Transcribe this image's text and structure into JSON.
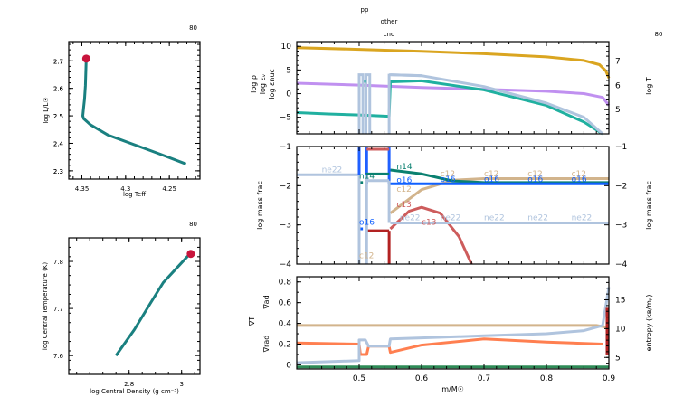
{
  "header": {
    "model_number_left_top": "80",
    "model_number_left_bottom": "80",
    "model_number_right": "80",
    "burn_labels": [
      "pp",
      "other",
      "cno"
    ]
  },
  "colors": {
    "teal": "#1a8080",
    "marker": "#c8143c",
    "logT": "#daa520",
    "logRho": "#c090f0",
    "logEps": "#20b0a0",
    "logEpsNuc": "#b0c4de",
    "h1": "#2060ff",
    "n14": "#0a8070",
    "c12": "#d2b48c",
    "c13": "#cd5c5c",
    "ne22": "#b0c4de",
    "o16": "#1060ff",
    "red": "#b22222",
    "sigma_ad": "#d2b48c",
    "sigma_rad": "#ff7f50",
    "entropy": "#b0c4de",
    "green": "#2e8b57"
  },
  "chart_data": [
    {
      "type": "line",
      "name": "HR diagram",
      "title": "",
      "xlabel": "log Teff",
      "ylabel": "log L/L☉",
      "xlim": [
        4.365,
        4.215
      ],
      "ylim": [
        2.27,
        2.77
      ],
      "xticks": [
        4.35,
        4.3,
        4.25
      ],
      "xtick_labels": [
        "4.35",
        "4.3",
        "4.25"
      ],
      "yticks": [
        2.3,
        2.4,
        2.5,
        2.6,
        2.7
      ],
      "ytick_labels": [
        "2.3",
        "2.4",
        "2.5",
        "2.6",
        "2.7"
      ],
      "series": [
        {
          "name": "track",
          "x": [
            4.231,
            4.26,
            4.29,
            4.32,
            4.34,
            4.348,
            4.349,
            4.348,
            4.347,
            4.346,
            4.345
          ],
          "y": [
            2.325,
            2.36,
            2.395,
            2.43,
            2.467,
            2.49,
            2.5,
            2.53,
            2.56,
            2.61,
            2.705
          ]
        }
      ],
      "marker": {
        "x": 4.345,
        "y": 2.708
      }
    },
    {
      "type": "line",
      "name": "central conditions",
      "xlabel": "log Central Density (g cm⁻³)",
      "ylabel": "log Central Temperature (K)",
      "xlim": [
        2.57,
        3.07
      ],
      "ylim": [
        7.56,
        7.85
      ],
      "xticks": [
        2.8,
        3.0
      ],
      "xtick_labels": [
        "2.8",
        "3"
      ],
      "yticks": [
        7.6,
        7.7,
        7.8
      ],
      "ytick_labels": [
        "7.6",
        "7.7",
        "7.8"
      ],
      "series": [
        {
          "name": "track",
          "x": [
            2.75,
            2.82,
            2.88,
            2.93,
            2.98,
            3.03
          ],
          "y": [
            7.6,
            7.655,
            7.71,
            7.755,
            7.785,
            7.815
          ]
        }
      ],
      "marker": {
        "x": 3.035,
        "y": 7.816
      }
    },
    {
      "type": "line",
      "name": "profile top",
      "xlim": [
        0.4,
        0.9
      ],
      "ylim": [
        -8.5,
        11
      ],
      "ylim_right": [
        4,
        7.8
      ],
      "yticks": [
        -5,
        0,
        5,
        10
      ],
      "ytick_labels": [
        "−5",
        "0",
        "5",
        "10"
      ],
      "yticks_right": [
        5,
        6,
        7
      ],
      "ytick_labels_right": [
        "5",
        "6",
        "7"
      ],
      "left_labels": [
        "log ρ",
        "log εᵥ",
        "log εnuc"
      ],
      "right_label": "log T",
      "series": [
        {
          "name": "logT",
          "axis": "right",
          "x": [
            0.4,
            0.5,
            0.6,
            0.7,
            0.8,
            0.86,
            0.885,
            0.895,
            0.9
          ],
          "y": [
            7.55,
            7.48,
            7.4,
            7.3,
            7.17,
            7.02,
            6.85,
            6.6,
            6.3
          ]
        },
        {
          "name": "logRho",
          "axis": "left",
          "x": [
            0.4,
            0.5,
            0.6,
            0.7,
            0.8,
            0.86,
            0.89,
            0.9
          ],
          "y": [
            2.2,
            1.8,
            1.3,
            0.9,
            0.5,
            0.0,
            -0.8,
            -2.5
          ]
        },
        {
          "name": "logEps",
          "axis": "left",
          "x": [
            0.4,
            0.45,
            0.5,
            0.548,
            0.55,
            0.6,
            0.7,
            0.8,
            0.86,
            0.89
          ],
          "y": [
            -4.0,
            -4.3,
            -4.5,
            -4.8,
            2.5,
            2.7,
            0.8,
            -2.5,
            -6.0,
            -8.5
          ]
        },
        {
          "name": "logEpsNuc",
          "axis": "left",
          "x": [
            0.55,
            0.6,
            0.7,
            0.8,
            0.86,
            0.89
          ],
          "y": [
            4.0,
            3.8,
            1.5,
            -2.0,
            -5.0,
            -8.5
          ]
        }
      ]
    },
    {
      "type": "line",
      "name": "abundances",
      "xlim": [
        0.4,
        0.9
      ],
      "ylim": [
        -4,
        -1
      ],
      "yticks": [
        -4,
        -3,
        -2,
        -1
      ],
      "ytick_labels": [
        "−4",
        "−3",
        "−2",
        "−1"
      ],
      "ylabel": "log mass frac",
      "ylabel_right": "log mass frac",
      "series": [
        {
          "name": "c12",
          "x": [
            0.55,
            0.6,
            0.65,
            0.7,
            0.9
          ],
          "y": [
            -2.7,
            -2.1,
            -1.86,
            -1.82,
            -1.82
          ]
        },
        {
          "name": "n14",
          "x": [
            0.55,
            0.6,
            0.65,
            0.7,
            0.9
          ],
          "y": [
            -1.6,
            -1.7,
            -1.88,
            -1.92,
            -1.92
          ]
        },
        {
          "name": "o16",
          "x": [
            0.55,
            0.9
          ],
          "y": [
            -1.95,
            -1.95
          ]
        },
        {
          "name": "c13",
          "x": [
            0.55,
            0.58,
            0.6,
            0.63,
            0.66,
            0.68
          ],
          "y": [
            -3.1,
            -2.65,
            -2.55,
            -2.7,
            -3.3,
            -4.0
          ]
        },
        {
          "name": "ne22",
          "x": [
            0.4,
            0.502
          ],
          "y": [
            -1.72,
            -1.72
          ]
        },
        {
          "name": "ne22_b",
          "x": [
            0.55,
            0.9
          ],
          "y": [
            -2.95,
            -2.95
          ]
        }
      ],
      "labels": [
        "ne22",
        "n14",
        "o16",
        "c12",
        "c13",
        "n14",
        "o16",
        "c12",
        "ne22",
        "c13"
      ]
    },
    {
      "type": "line",
      "name": "gradients",
      "xlabel": "m/M☉",
      "xlim": [
        0.4,
        0.9
      ],
      "ylim": [
        -0.04,
        0.85
      ],
      "xticks": [
        0.5,
        0.6,
        0.7,
        0.8,
        0.9
      ],
      "xtick_labels": [
        "0.5",
        "0.6",
        "0.7",
        "0.8",
        "0.9"
      ],
      "yticks": [
        0,
        0.2,
        0.4,
        0.6,
        0.8
      ],
      "ytick_labels": [
        "0",
        "0.2",
        "0.4",
        "0.6",
        "0.8"
      ],
      "ylim_right": [
        3,
        19
      ],
      "yticks_right": [
        5,
        10,
        15
      ],
      "ytick_labels_right": [
        "5",
        "10",
        "15"
      ],
      "left_labels": [
        "∇ad",
        "∇T",
        "∇rad"
      ],
      "right_label": "entropy (kʙ/mₚ)",
      "series": [
        {
          "name": "grad_ad",
          "x": [
            0.4,
            0.6,
            0.8,
            0.88,
            0.9
          ],
          "y": [
            0.38,
            0.38,
            0.38,
            0.38,
            0.36
          ]
        },
        {
          "name": "grad_rad",
          "x": [
            0.4,
            0.5,
            0.502,
            0.512,
            0.515,
            0.548,
            0.55,
            0.6,
            0.7,
            0.8,
            0.89
          ],
          "y": [
            0.21,
            0.2,
            0.1,
            0.1,
            0.18,
            0.18,
            0.12,
            0.19,
            0.25,
            0.22,
            0.2
          ]
        },
        {
          "name": "entropy",
          "x": [
            0.4,
            0.5,
            0.5,
            0.51,
            0.515,
            0.548,
            0.55,
            0.6,
            0.7,
            0.8,
            0.86,
            0.89,
            0.9
          ],
          "y": [
            0.02,
            0.04,
            0.24,
            0.24,
            0.18,
            0.18,
            0.25,
            0.26,
            0.28,
            0.3,
            0.33,
            0.38,
            0.75
          ]
        },
        {
          "name": "baseline",
          "x": [
            0.4,
            0.9
          ],
          "y": [
            -0.02,
            -0.02
          ]
        }
      ]
    }
  ]
}
